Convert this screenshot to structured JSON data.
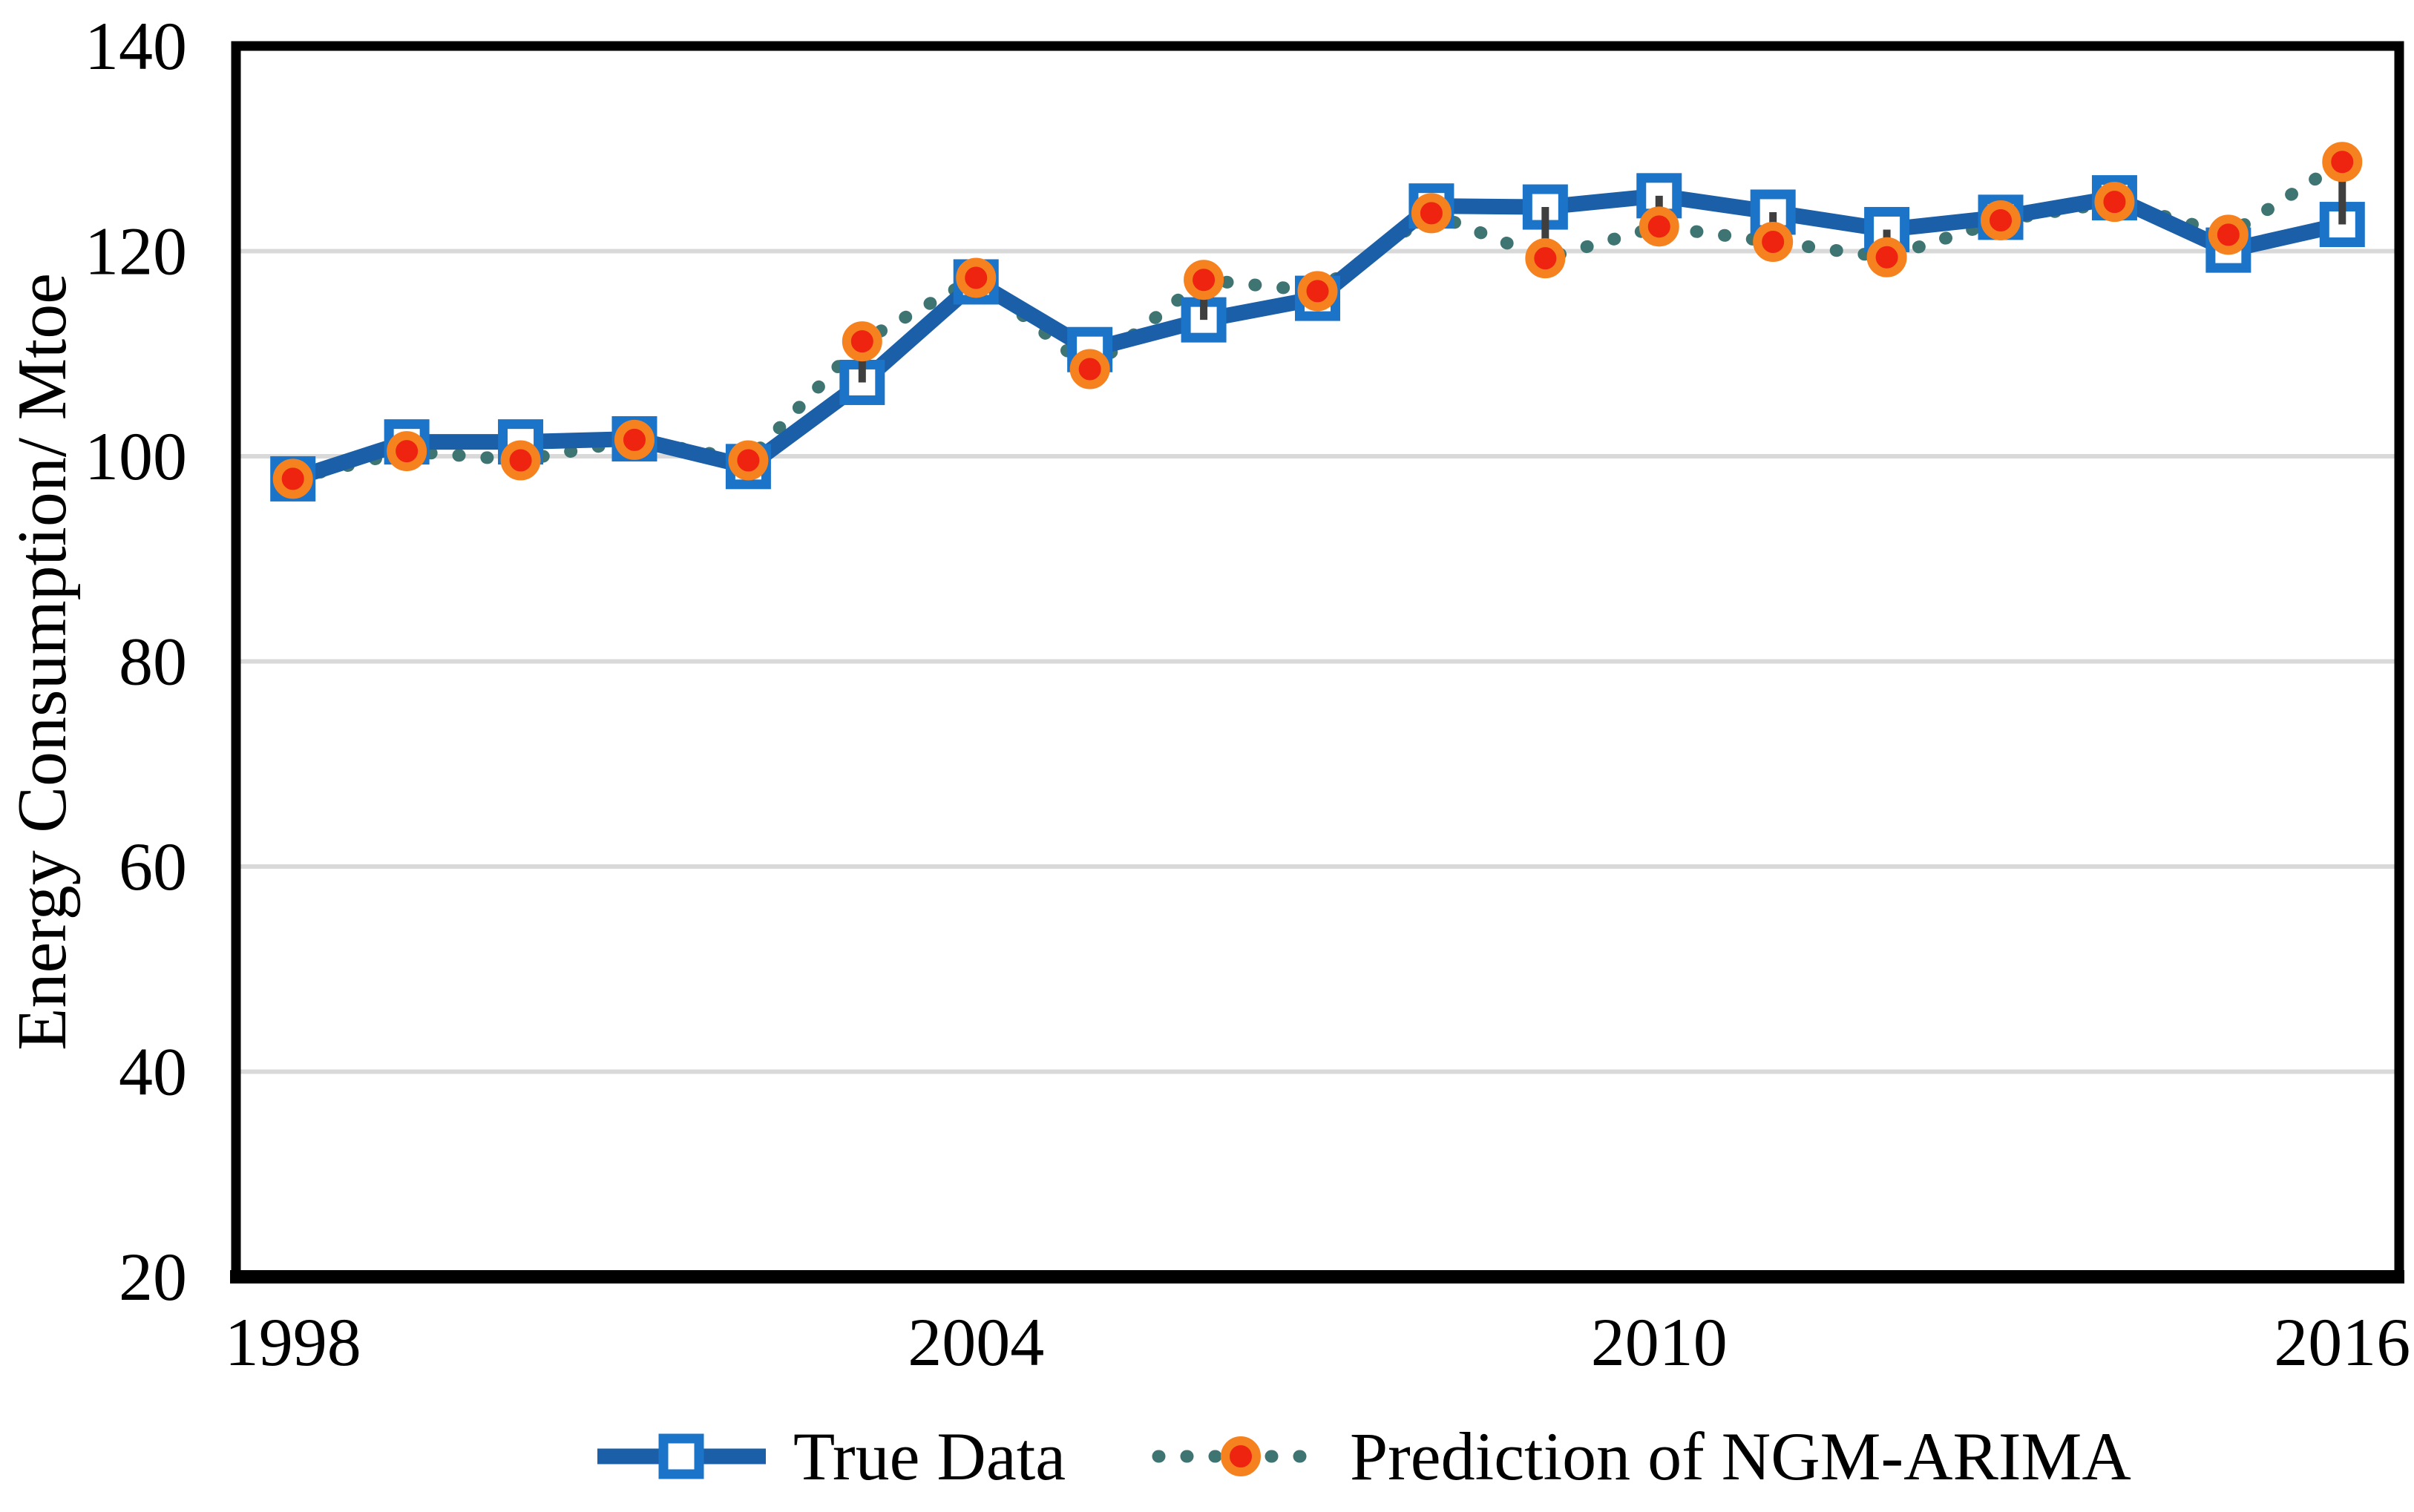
{
  "chart_data": {
    "type": "line",
    "title": "",
    "xlabel": "",
    "ylabel": "Energy Consumption/ Mtoe",
    "ylim": [
      20,
      140
    ],
    "yticks": [
      20,
      40,
      60,
      80,
      100,
      120,
      140
    ],
    "xticks": [
      1998,
      2004,
      2010,
      2016
    ],
    "x": [
      1998,
      1999,
      2000,
      2001,
      2002,
      2003,
      2004,
      2005,
      2006,
      2007,
      2008,
      2009,
      2010,
      2011,
      2012,
      2013,
      2014,
      2015,
      2016
    ],
    "series": [
      {
        "name": "True Data",
        "type": "solid-line",
        "marker": "square",
        "line_color": "#1A5FA8",
        "marker_border_color": "#1B74C8",
        "marker_fill": "#FFFFFF",
        "values": [
          97.8,
          101.4,
          101.4,
          101.7,
          99.0,
          107.2,
          117.0,
          110.4,
          113.3,
          115.4,
          124.4,
          124.3,
          125.4,
          123.8,
          122.1,
          123.3,
          125.2,
          120.1,
          122.6
        ]
      },
      {
        "name": "Prediction of NGM-ARIMA",
        "type": "dotted-line",
        "marker": "circle",
        "line_color": "#3E7472",
        "marker_border_color": "#F5821F",
        "marker_fill": "#EE2310",
        "values": [
          97.8,
          100.5,
          99.6,
          101.6,
          99.6,
          111.2,
          117.4,
          108.5,
          117.2,
          116.1,
          123.7,
          119.3,
          122.4,
          120.9,
          119.4,
          123.0,
          124.8,
          121.6,
          128.7
        ]
      }
    ],
    "deviation_bar_color": "#3F3F3F",
    "gridline_color": "#D9D9D9",
    "axis_frame_color": "#000000",
    "grid": "horizontal",
    "legend_position": "bottom"
  }
}
